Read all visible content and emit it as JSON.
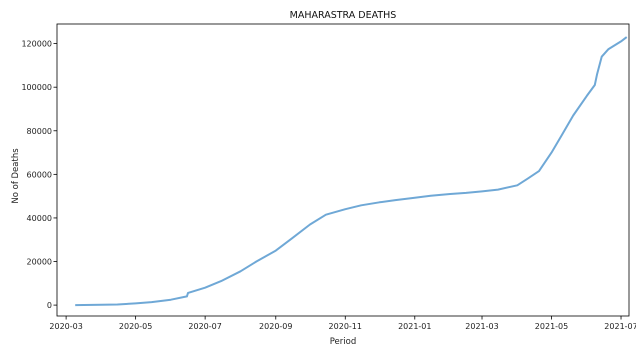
{
  "chart_data": {
    "type": "line",
    "title": "MAHARASTRA DEATHS",
    "xlabel": "Period",
    "ylabel": "No of Deaths",
    "x_ticks": [
      "2020-03",
      "2020-05",
      "2020-07",
      "2020-09",
      "2020-11",
      "2021-01",
      "2021-03",
      "2021-05",
      "2021-07"
    ],
    "y_ticks": [
      0,
      20000,
      40000,
      60000,
      80000,
      100000,
      120000
    ],
    "xlim": [
      "2020-02-22",
      "2021-07-08"
    ],
    "ylim": [
      -5000,
      129000
    ],
    "grid": false,
    "line_color": "#6fa8d6",
    "series": [
      {
        "x": [
          "2020-03-09",
          "2020-04-01",
          "2020-04-15",
          "2020-05-01",
          "2020-05-15",
          "2020-06-01",
          "2020-06-15",
          "2020-06-16",
          "2020-07-01",
          "2020-07-15",
          "2020-08-01",
          "2020-08-15",
          "2020-09-01",
          "2020-09-15",
          "2020-10-01",
          "2020-10-15",
          "2020-11-01",
          "2020-11-15",
          "2020-12-01",
          "2020-12-15",
          "2021-01-01",
          "2021-01-15",
          "2021-02-01",
          "2021-02-15",
          "2021-03-01",
          "2021-03-15",
          "2021-04-01",
          "2021-04-10",
          "2021-04-20",
          "2021-05-01",
          "2021-05-10",
          "2021-05-20",
          "2021-06-01",
          "2021-06-08",
          "2021-06-10",
          "2021-06-14",
          "2021-06-20",
          "2021-07-01",
          "2021-07-06"
        ],
        "y": [
          0,
          150,
          300,
          800,
          1400,
          2500,
          4000,
          5600,
          8000,
          11000,
          15500,
          20000,
          25000,
          30500,
          37000,
          41500,
          44000,
          45800,
          47200,
          48200,
          49300,
          50200,
          51000,
          51500,
          52200,
          53000,
          55000,
          58000,
          61500,
          70000,
          78000,
          87000,
          96000,
          101000,
          106000,
          114000,
          117500,
          121000,
          123000
        ]
      }
    ]
  }
}
